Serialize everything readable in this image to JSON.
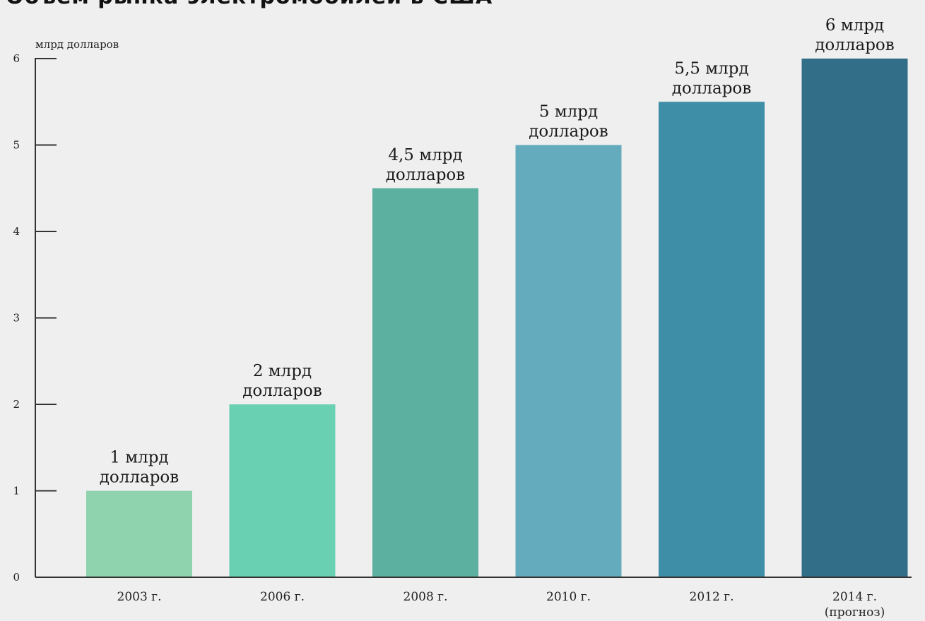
{
  "chart_data": {
    "type": "bar",
    "title": "Объем рынка электромобилей в США",
    "ylabel": "млрд долларов",
    "ylim": [
      0,
      6
    ],
    "yticks": [
      "0",
      "1",
      "2",
      "3",
      "4",
      "5",
      "6"
    ],
    "categories": [
      "2003 г.",
      "2006 г.",
      "2008 г.",
      "2010 г.",
      "2012 г.",
      "2014 г."
    ],
    "category_notes": [
      "",
      "",
      "",
      "",
      "",
      "(прогноз)"
    ],
    "values": [
      1,
      2,
      4.5,
      5,
      5.5,
      6
    ],
    "value_labels": [
      [
        "1 млрд",
        "долларов"
      ],
      [
        "2 млрд",
        "долларов"
      ],
      [
        "4,5 млрд",
        "долларов"
      ],
      [
        "5 млрд",
        "долларов"
      ],
      [
        "5,5 млрд",
        "долларов"
      ],
      [
        "6 млрд",
        "долларов"
      ]
    ],
    "colors": [
      "#8ed3ad",
      "#69d1b2",
      "#5cb0a0",
      "#64abbd",
      "#3f8ea7",
      "#336e88"
    ],
    "grid": false,
    "legend": "none"
  }
}
